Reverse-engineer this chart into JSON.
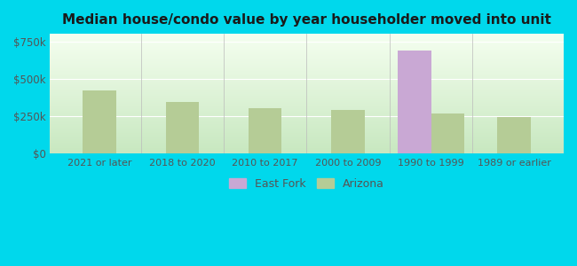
{
  "title": "Median house/condo value by year householder moved into unit",
  "categories": [
    "2021 or later",
    "2018 to 2020",
    "2010 to 2017",
    "2000 to 2009",
    "1990 to 1999",
    "1989 or earlier"
  ],
  "arizona_values": [
    420000,
    345000,
    305000,
    290000,
    270000,
    245000
  ],
  "eastfork_values": [
    null,
    null,
    null,
    null,
    690000,
    null
  ],
  "arizona_color": "#b5cc96",
  "eastfork_color": "#c9a8d4",
  "background_outer": "#00d8ec",
  "yticks": [
    0,
    250000,
    500000,
    750000
  ],
  "ytick_labels": [
    "$0",
    "$250k",
    "$500k",
    "$750k"
  ],
  "ylim": [
    0,
    800000
  ],
  "legend_east_fork": "East Fork",
  "legend_arizona": "Arizona",
  "bar_width": 0.4,
  "ef_bar_width": 0.4
}
